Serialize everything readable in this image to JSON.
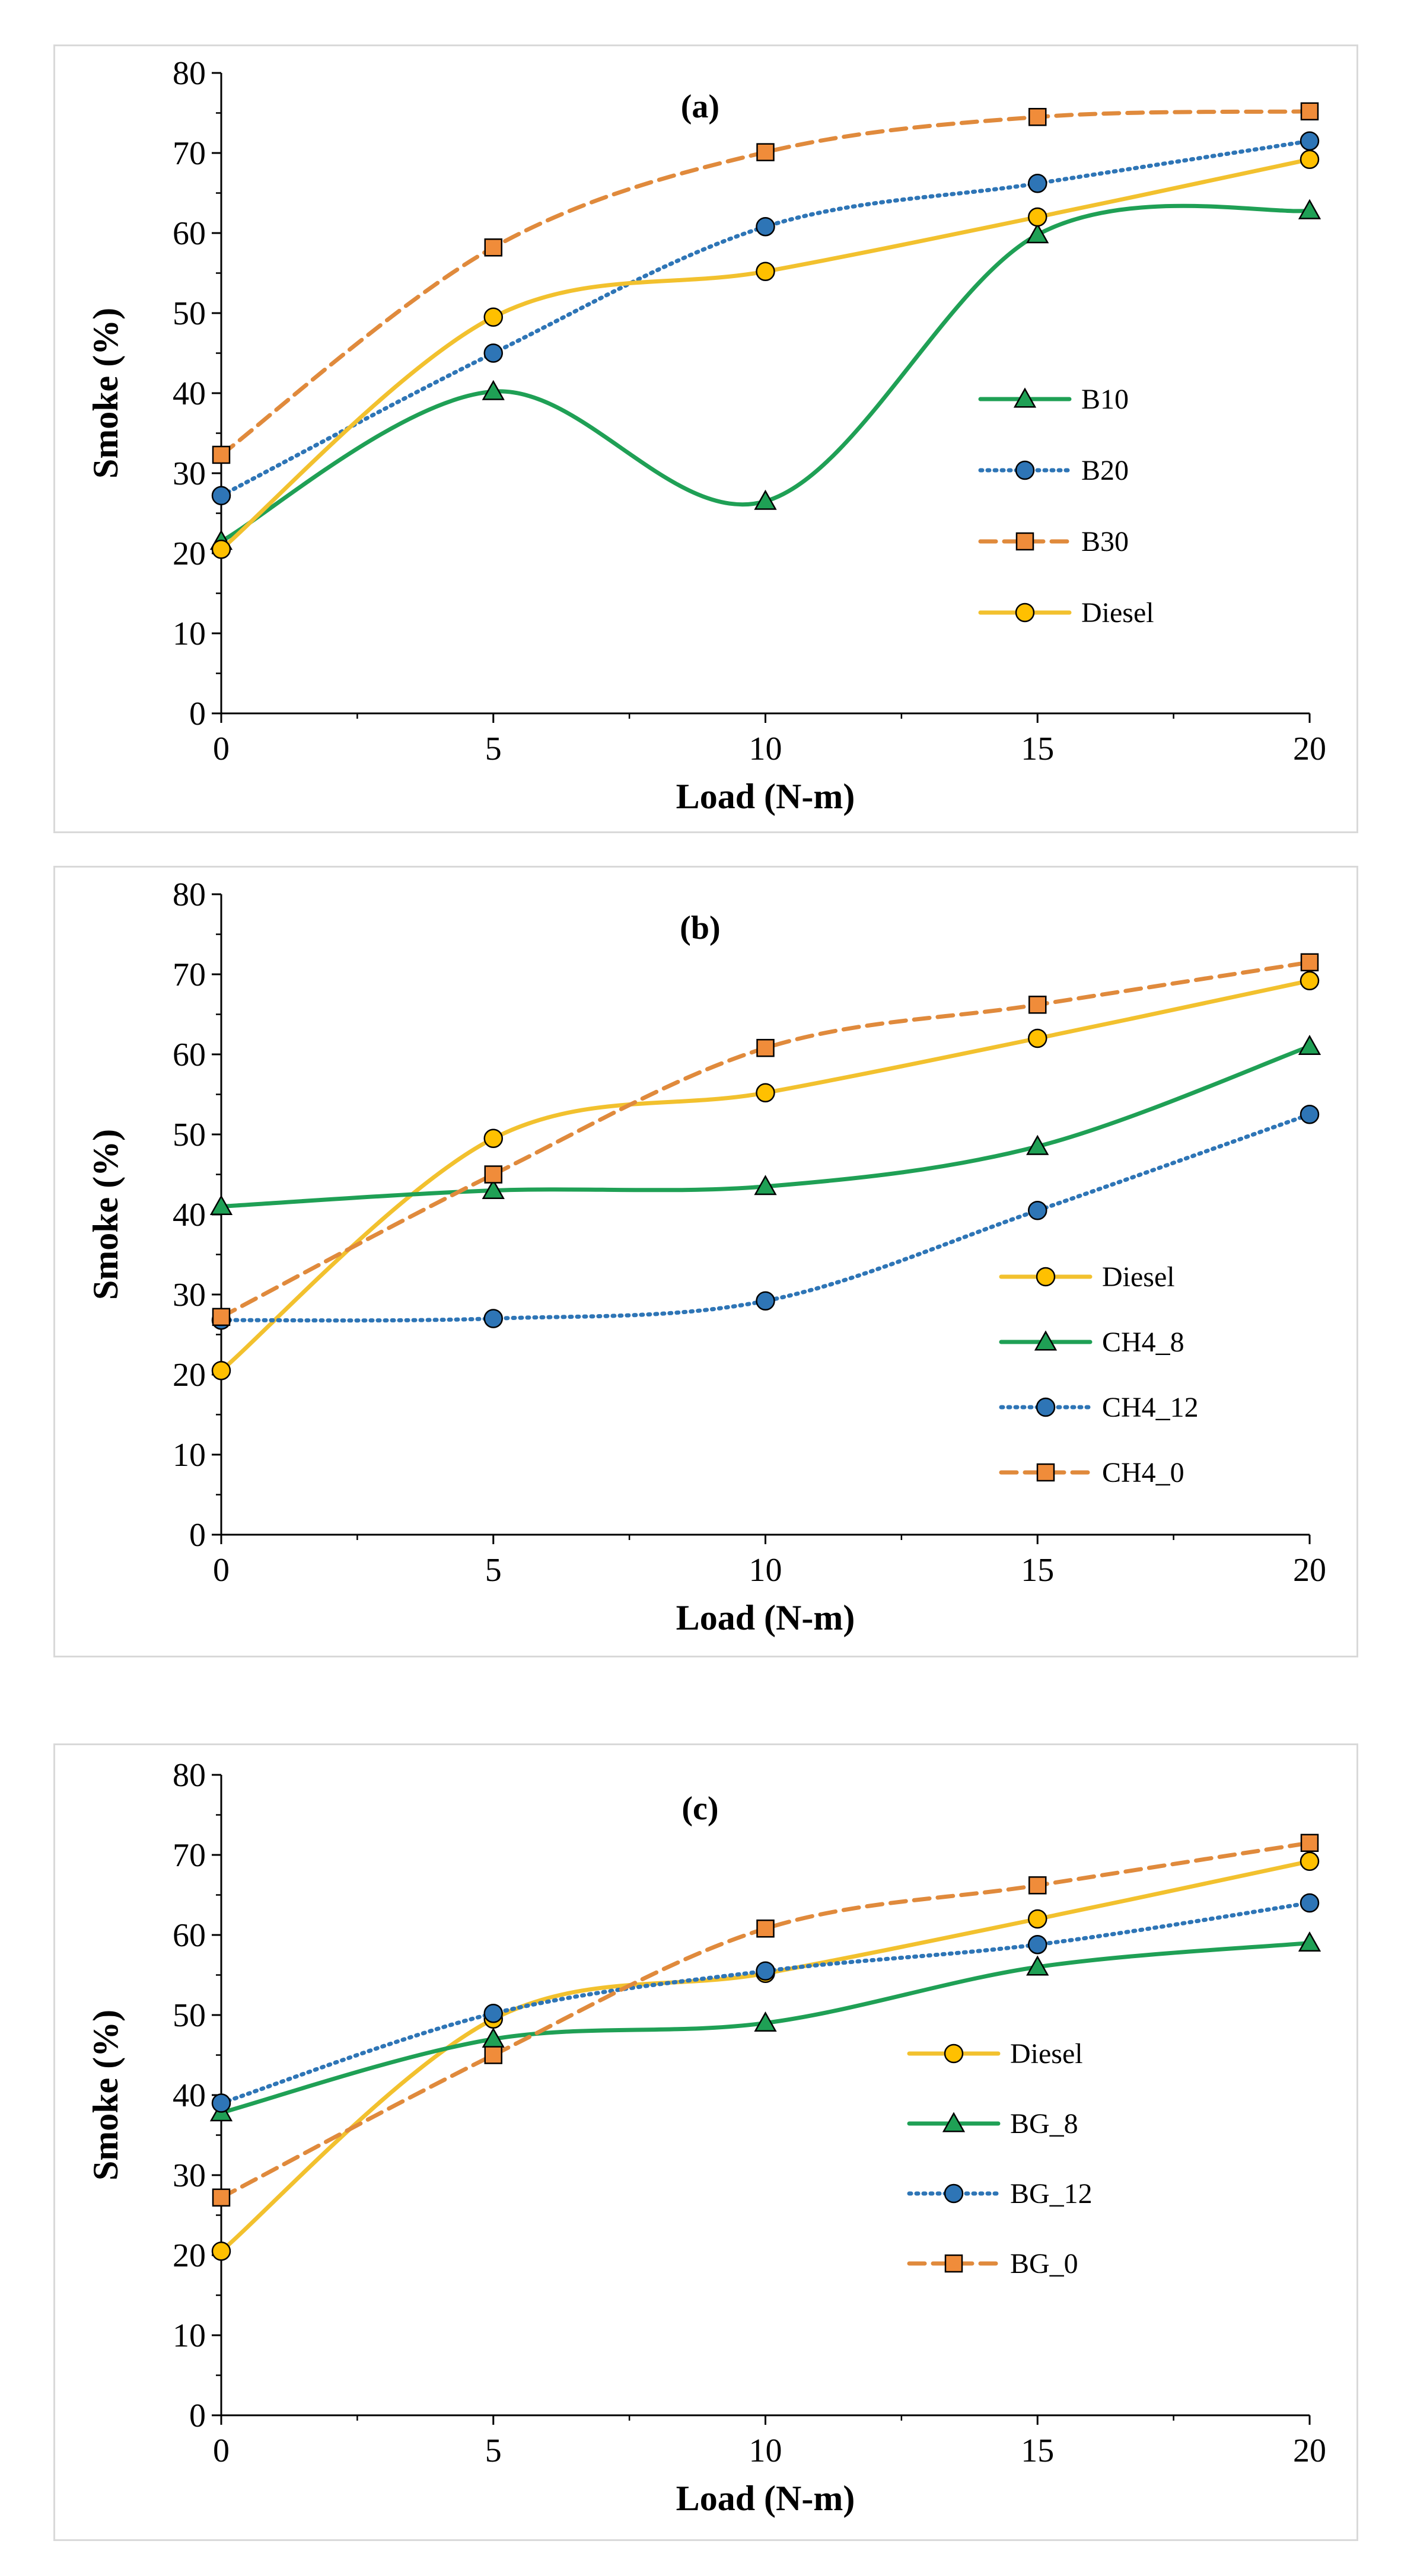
{
  "chart_data": [
    {
      "type": "line",
      "title": "(a)",
      "xlabel": "Load (N-m)",
      "ylabel": "Smoke (%)",
      "xlim": [
        0,
        20
      ],
      "ylim": [
        0,
        80
      ],
      "xticks": [
        0,
        5,
        10,
        15,
        20
      ],
      "yticks": [
        0,
        10,
        20,
        30,
        40,
        50,
        60,
        70,
        80
      ],
      "x": [
        0,
        5,
        10,
        15,
        20
      ],
      "legend_position": "center-right",
      "series": [
        {
          "name": "B10",
          "values": [
            21.5,
            40.2,
            26.5,
            59.8,
            62.8
          ],
          "color": "#1fa055",
          "line": "solid",
          "marker": "triangle",
          "marker_fill": "#1fa055"
        },
        {
          "name": "B20",
          "values": [
            27.2,
            45.0,
            60.8,
            66.2,
            71.5
          ],
          "color": "#2e75b6",
          "line": "dotted",
          "marker": "circle",
          "marker_fill": "#2e75b6"
        },
        {
          "name": "B30",
          "values": [
            32.3,
            58.2,
            70.1,
            74.5,
            75.2
          ],
          "color": "#e08a3c",
          "line": "dashed",
          "marker": "square",
          "marker_fill": "#f08c3a"
        },
        {
          "name": "Diesel",
          "values": [
            20.5,
            49.5,
            55.2,
            62.0,
            69.2
          ],
          "color": "#f2c12e",
          "line": "solid",
          "marker": "circle",
          "marker_fill": "#ffc000"
        }
      ]
    },
    {
      "type": "line",
      "title": "(b)",
      "xlabel": "Load (N-m)",
      "ylabel": "Smoke (%)",
      "xlim": [
        0,
        20
      ],
      "ylim": [
        0,
        80
      ],
      "xticks": [
        0,
        5,
        10,
        15,
        20
      ],
      "yticks": [
        0,
        10,
        20,
        30,
        40,
        50,
        60,
        70,
        80
      ],
      "x": [
        0,
        5,
        10,
        15,
        20
      ],
      "legend_position": "bottom-right",
      "series": [
        {
          "name": "Diesel",
          "values": [
            20.5,
            49.5,
            55.2,
            62.0,
            69.2
          ],
          "color": "#f2c12e",
          "line": "solid",
          "marker": "circle",
          "marker_fill": "#ffc000"
        },
        {
          "name": "CH4_8",
          "values": [
            41.0,
            43.0,
            43.5,
            48.5,
            61.0
          ],
          "color": "#1fa055",
          "line": "solid",
          "marker": "triangle",
          "marker_fill": "#1fa055"
        },
        {
          "name": "CH4_12",
          "values": [
            26.8,
            27.0,
            29.2,
            40.5,
            52.5
          ],
          "color": "#2e75b6",
          "line": "dotted",
          "marker": "circle",
          "marker_fill": "#2e75b6"
        },
        {
          "name": "CH4_0",
          "values": [
            27.2,
            45.0,
            60.8,
            66.2,
            71.5
          ],
          "color": "#e08a3c",
          "line": "dashed",
          "marker": "square",
          "marker_fill": "#f08c3a"
        }
      ]
    },
    {
      "type": "line",
      "title": "(c)",
      "xlabel": "Load (N-m)",
      "ylabel": "Smoke (%)",
      "xlim": [
        0,
        20
      ],
      "ylim": [
        0,
        80
      ],
      "xticks": [
        0,
        5,
        10,
        15,
        20
      ],
      "yticks": [
        0,
        10,
        20,
        30,
        40,
        50,
        60,
        70,
        80
      ],
      "x": [
        0,
        5,
        10,
        15,
        20
      ],
      "legend_position": "center-right",
      "series": [
        {
          "name": "Diesel",
          "values": [
            20.5,
            49.5,
            55.2,
            62.0,
            69.2
          ],
          "color": "#f2c12e",
          "line": "solid",
          "marker": "circle",
          "marker_fill": "#ffc000"
        },
        {
          "name": "BG_8",
          "values": [
            37.8,
            47.0,
            49.0,
            56.0,
            59.0
          ],
          "color": "#1fa055",
          "line": "solid",
          "marker": "triangle",
          "marker_fill": "#1fa055"
        },
        {
          "name": "BG_12",
          "values": [
            39.0,
            50.2,
            55.5,
            58.8,
            64.0
          ],
          "color": "#2e75b6",
          "line": "dotted",
          "marker": "circle",
          "marker_fill": "#2e75b6"
        },
        {
          "name": "BG_0",
          "values": [
            27.2,
            45.0,
            60.8,
            66.2,
            71.5
          ],
          "color": "#e08a3c",
          "line": "dashed",
          "marker": "square",
          "marker_fill": "#f08c3a"
        }
      ]
    }
  ]
}
